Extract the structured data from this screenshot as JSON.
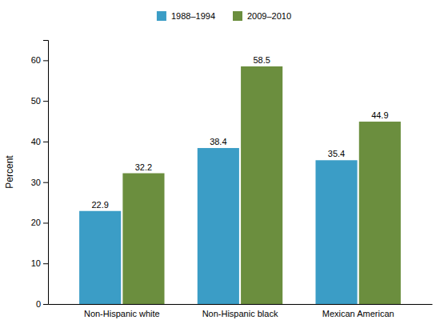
{
  "chart_data": {
    "type": "bar",
    "categories": [
      "Non-Hispanic white",
      "Non-Hispanic black",
      "Mexican American"
    ],
    "series": [
      {
        "name": "1988–1994",
        "color": "#3b9dc6",
        "values": [
          22.9,
          38.4,
          35.4
        ]
      },
      {
        "name": "2009–2010",
        "color": "#6b8e3e",
        "values": [
          32.2,
          58.5,
          44.9
        ]
      }
    ],
    "ylabel": "Percent",
    "ylim": [
      0,
      65
    ],
    "yticks": [
      0,
      10,
      20,
      30,
      40,
      50,
      60
    ],
    "grid": false,
    "legend": "top",
    "data_labels": true
  }
}
